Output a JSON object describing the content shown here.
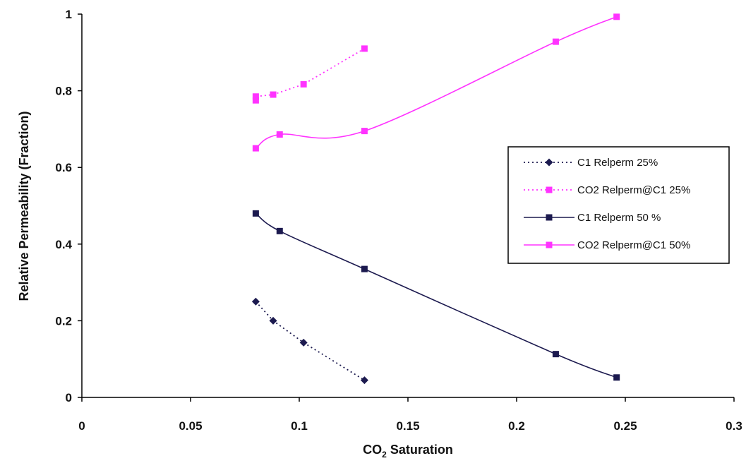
{
  "chart_data": {
    "type": "line",
    "title": "",
    "xlabel": {
      "main": "CO",
      "sub": "2",
      "rest": " Saturation"
    },
    "ylabel": "Relative Permeability (Fraction)",
    "xlim": [
      0,
      0.3
    ],
    "ylim": [
      0,
      1
    ],
    "xticks": [
      0,
      0.05,
      0.1,
      0.15,
      0.2,
      0.25,
      0.3
    ],
    "xtick_labels": [
      "0",
      "0.05",
      "0.1",
      "0.15",
      "0.2",
      "0.25",
      "0.3"
    ],
    "yticks": [
      0,
      0.2,
      0.4,
      0.6,
      0.8,
      1
    ],
    "ytick_labels": [
      "0",
      "0.2",
      "0.4",
      "0.6",
      "0.8",
      "1"
    ],
    "grid": false,
    "legend": {
      "position": "right"
    },
    "series": [
      {
        "name": "C1 Relperm 25%",
        "color": "#1c1a4f",
        "line": "dotted",
        "marker": "diamond",
        "smooth": false,
        "points": [
          [
            0.08,
            0.25
          ],
          [
            0.088,
            0.2
          ],
          [
            0.102,
            0.143
          ],
          [
            0.13,
            0.045
          ]
        ]
      },
      {
        "name": "CO2 Relperm@C1 25%",
        "color": "#ff33ff",
        "line": "dotted",
        "marker": "square",
        "smooth": false,
        "points": [
          [
            0.08,
            0.775
          ],
          [
            0.08,
            0.785
          ],
          [
            0.088,
            0.79
          ],
          [
            0.102,
            0.817
          ],
          [
            0.13,
            0.91
          ]
        ]
      },
      {
        "name": "C1 Relperm 50 %",
        "color": "#1c1a4f",
        "line": "solid",
        "marker": "square",
        "smooth": true,
        "points": [
          [
            0.08,
            0.48
          ],
          [
            0.091,
            0.434
          ],
          [
            0.13,
            0.335
          ],
          [
            0.218,
            0.113
          ],
          [
            0.246,
            0.052
          ]
        ]
      },
      {
        "name": "CO2 Relperm@C1 50%",
        "color": "#ff33ff",
        "line": "solid",
        "marker": "square",
        "smooth": true,
        "points": [
          [
            0.08,
            0.65
          ],
          [
            0.091,
            0.686
          ],
          [
            0.13,
            0.695
          ],
          [
            0.218,
            0.928
          ],
          [
            0.246,
            0.993
          ]
        ]
      }
    ]
  }
}
